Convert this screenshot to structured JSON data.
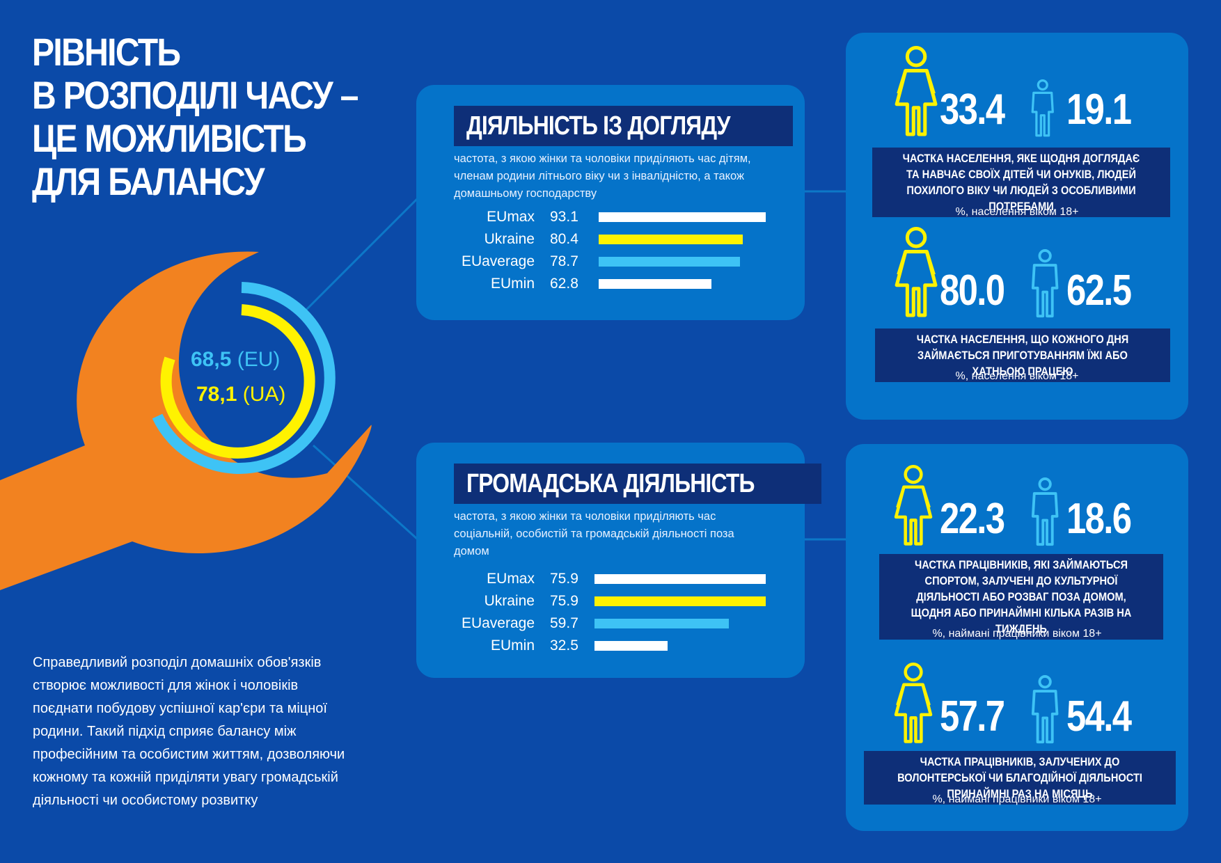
{
  "title": {
    "lines": [
      "Рівність",
      "в розподілі часу –",
      "це можливість",
      "для балансу"
    ]
  },
  "intro_text": "Справедливий розподіл домашніх обов'язків створює можливості для жінок і чоловіків поєднати побудову успішної кар'єри та міцної родини. Такий підхід сприяє балансу між професійним та особистим життям, дозволяючи кожному та кожній приділяти увагу громадській діяльності чи особистому розвитку",
  "gauge": {
    "eu_value": "68,5",
    "eu_suffix": "(EU)",
    "ua_value": "78,1",
    "ua_suffix": "(UA)",
    "eu_color": "#3ec3f5",
    "ua_color": "#fff200"
  },
  "colors": {
    "background": "#0b4aa8",
    "panel": "#0573c9",
    "heading_bg": "#0e2f78",
    "wrench": "#f28220",
    "eu_bar": "#3ec3f5",
    "ukraine_bar": "#fff200",
    "white_bar": "#ffffff"
  },
  "care_panel": {
    "heading": "ДІЯЛЬНІСТЬ ІЗ ДОГЛЯДУ",
    "description": "частота, з якою жінки та чоловіки приділяють час дітям, членам родини літнього віку чи з інвалідністю, а також домашньому господарству"
  },
  "civic_panel": {
    "heading": "ГРОМАДСЬКА ДІЯЛЬНІСТЬ",
    "description": "частота, з якою жінки та чоловіки приділяють час соціальній, особистій та громадській діяльності поза домом"
  },
  "chart_data": [
    {
      "type": "bar",
      "orientation": "horizontal",
      "categories": [
        "EUmax",
        "Ukraine",
        "EUaverage",
        "EUmin"
      ],
      "values": [
        93.1,
        80.4,
        78.7,
        62.8
      ],
      "value_labels": [
        "93.1",
        "80.4",
        "78.7",
        "62.8"
      ],
      "colors": [
        "#ffffff",
        "#fff200",
        "#3ec3f5",
        "#ffffff"
      ],
      "xlim": [
        0,
        93.1
      ],
      "title": "ДІЯЛЬНІСТЬ ІЗ ДОГЛЯДУ"
    },
    {
      "type": "bar",
      "orientation": "horizontal",
      "categories": [
        "EUmax",
        "Ukraine",
        "EUaverage",
        "EUmin"
      ],
      "values": [
        75.9,
        75.9,
        59.7,
        32.5
      ],
      "value_labels": [
        "75.9",
        "75.9",
        "59.7",
        "32.5"
      ],
      "colors": [
        "#ffffff",
        "#fff200",
        "#3ec3f5",
        "#ffffff"
      ],
      "xlim": [
        0,
        75.9
      ],
      "title": "ГРОМАДСЬКА ДІЯЛЬНІСТЬ"
    }
  ],
  "stats": {
    "care_daily": {
      "female": "33.4",
      "male": "19.1",
      "caption": "Частка населення, яке щодня доглядає та навчає своїх дітей чи онуків, людей похилого віку чи людей з особливими потребами",
      "note": "%, населення віком 18+"
    },
    "cooking": {
      "female": "80.0",
      "male": "62.5",
      "caption": "Частка населення, що кожного дня займається приготуванням їжі або хатньою працею",
      "note": "%, населення віком 18+"
    },
    "sport": {
      "female": "22.3",
      "male": "18.6",
      "caption": "Частка працівників, які займаються спортом, залучені до культурної діяльності або розваг поза домом, щодня або принаймні кілька разів на тиждень",
      "note": "%, наймані працівники віком 18+"
    },
    "volunteer": {
      "female": "57.7",
      "male": "54.4",
      "caption": "Частка працівників, залучених до волонтерської чи благодійної діяльності принаймні раз на місяць",
      "note": "%, наймані працівники віком 18+"
    }
  },
  "icons": {
    "female": "female-person-icon",
    "male": "male-person-icon",
    "wrench": "wrench-icon"
  }
}
